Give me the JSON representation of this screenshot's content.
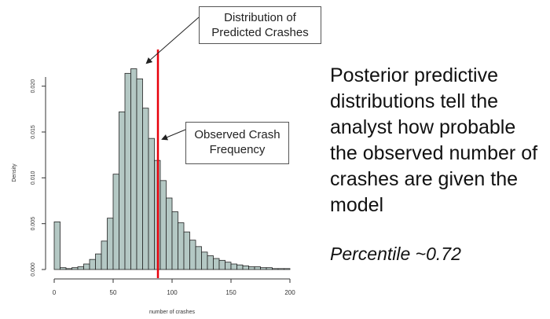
{
  "chart_data": {
    "type": "bar",
    "xlabel": "number of crashes",
    "ylabel": "Density",
    "xlim": [
      0,
      200
    ],
    "ylim": [
      0,
      0.021
    ],
    "x_ticks": [
      "0",
      "50",
      "100",
      "150",
      "200"
    ],
    "y_ticks": [
      "0.000",
      "0.005",
      "0.010",
      "0.015",
      "0.020"
    ],
    "bin_width": 5,
    "bin_starts": [
      0,
      5,
      10,
      15,
      20,
      25,
      30,
      35,
      40,
      45,
      50,
      55,
      60,
      65,
      70,
      75,
      80,
      85,
      90,
      95,
      100,
      105,
      110,
      115,
      120,
      125,
      130,
      135,
      140,
      145,
      150,
      155,
      160,
      165,
      170,
      175,
      180,
      185,
      190,
      195
    ],
    "values": [
      0.0052,
      0.0002,
      0.0001,
      0.0002,
      0.0003,
      0.0006,
      0.0011,
      0.0017,
      0.0031,
      0.0056,
      0.0104,
      0.0172,
      0.0214,
      0.0219,
      0.0208,
      0.0176,
      0.0143,
      0.0119,
      0.0097,
      0.0078,
      0.0063,
      0.0051,
      0.0041,
      0.0032,
      0.0025,
      0.0019,
      0.0015,
      0.0012,
      0.001,
      0.0008,
      0.0006,
      0.0005,
      0.0004,
      0.0003,
      0.0003,
      0.0002,
      0.0002,
      0.0001,
      0.0001,
      0.0001
    ],
    "bar_color": "#b4c8c4",
    "observed_value": 88,
    "observed_color": "#e8000b",
    "grid": false
  },
  "annotations": {
    "distribution": "Distribution of\nPredicted Crashes",
    "observed": "Observed Crash\nFrequency"
  },
  "side_text": "Posterior predictive distributions tell the analyst how probable the observed number of crashes are given the model",
  "side_note": "Percentile ~0.72"
}
